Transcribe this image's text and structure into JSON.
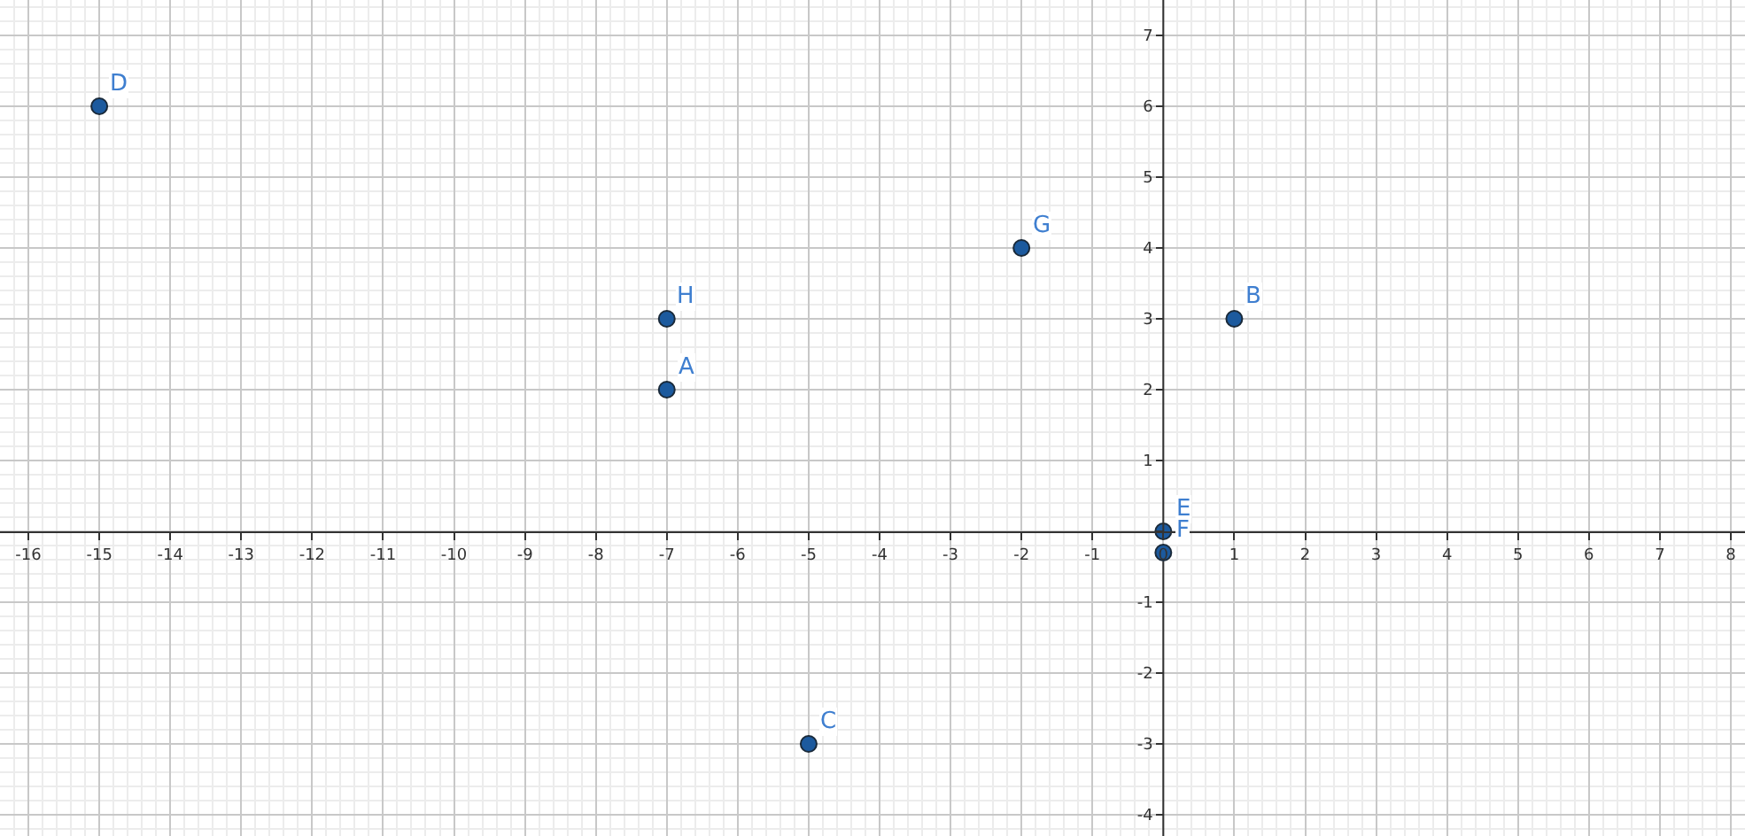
{
  "chart_data": {
    "type": "scatter",
    "marker": "circle",
    "grid": true,
    "legend": false,
    "xlim": [
      -16.4,
      8.2
    ],
    "ylim": [
      -4.3,
      7.5
    ],
    "xticks": [
      -16,
      -15,
      -14,
      -13,
      -12,
      -11,
      -10,
      -9,
      -8,
      -7,
      -6,
      -5,
      -4,
      -3,
      -2,
      -1,
      0,
      1,
      2,
      3,
      4,
      5,
      6,
      7,
      8
    ],
    "yticks": [
      -4,
      -3,
      -2,
      -1,
      {
        "value": 0,
        "label": null
      },
      1,
      2,
      3,
      4,
      5,
      6,
      7
    ],
    "series": [
      {
        "name": "A",
        "x": [
          -7
        ],
        "values": [
          2
        ],
        "color": "#1c5a9e"
      },
      {
        "name": "B",
        "x": [
          1
        ],
        "values": [
          3
        ],
        "color": "#1c5a9e"
      },
      {
        "name": "C",
        "x": [
          -5
        ],
        "values": [
          -3
        ],
        "color": "#1c5a9e"
      },
      {
        "name": "D",
        "x": [
          -15
        ],
        "values": [
          6
        ],
        "color": "#1c5a9e"
      },
      {
        "name": "E",
        "x": [
          0
        ],
        "values": [
          0
        ],
        "color": "#1c5a9e"
      },
      {
        "name": "F",
        "x": [
          0
        ],
        "values": [
          -0.3
        ],
        "color": "#1c5a9e"
      },
      {
        "name": "G",
        "x": [
          -2
        ],
        "values": [
          4
        ],
        "color": "#1c5a9e"
      },
      {
        "name": "H",
        "x": [
          -7
        ],
        "values": [
          3
        ],
        "color": "#1c5a9e"
      }
    ]
  }
}
